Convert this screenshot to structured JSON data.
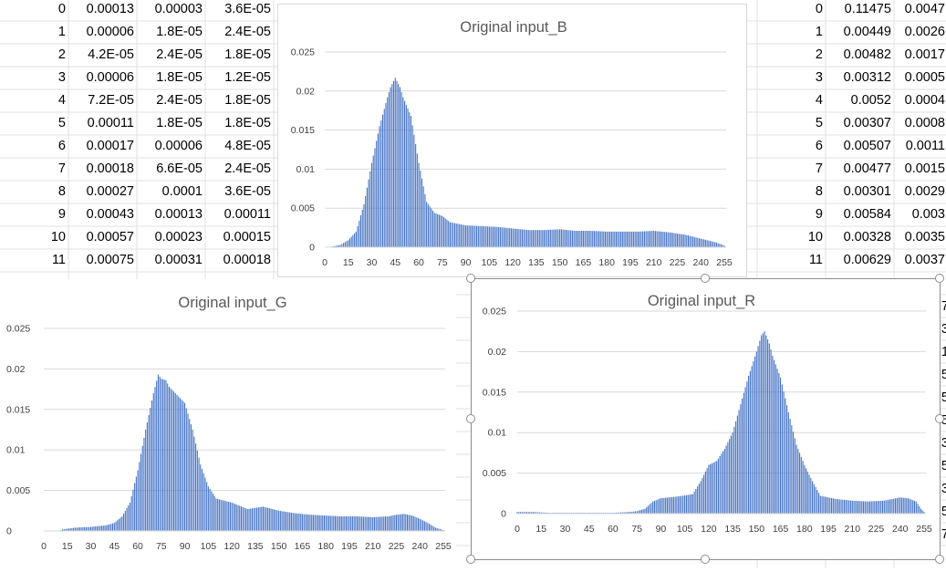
{
  "spreadsheet": {
    "left_block": {
      "rows": [
        [
          "0",
          "0.00013",
          "0.00003",
          "3.6E-05"
        ],
        [
          "1",
          "0.00006",
          "1.8E-05",
          "2.4E-05"
        ],
        [
          "2",
          "4.2E-05",
          "2.4E-05",
          "1.8E-05"
        ],
        [
          "3",
          "0.00006",
          "1.8E-05",
          "1.2E-05"
        ],
        [
          "4",
          "7.2E-05",
          "2.4E-05",
          "1.8E-05"
        ],
        [
          "5",
          "0.00011",
          "1.8E-05",
          "1.8E-05"
        ],
        [
          "6",
          "0.00017",
          "0.00006",
          "4.8E-05"
        ],
        [
          "7",
          "0.00018",
          "6.6E-05",
          "2.4E-05"
        ],
        [
          "8",
          "0.00027",
          "0.0001",
          "3.6E-05"
        ],
        [
          "9",
          "0.00043",
          "0.00013",
          "0.00011"
        ],
        [
          "10",
          "0.00057",
          "0.00023",
          "0.00015"
        ],
        [
          "11",
          "0.00075",
          "0.00031",
          "0.00018"
        ]
      ]
    },
    "right_block": {
      "rows": [
        [
          "0",
          "0.11475",
          "0.0047"
        ],
        [
          "1",
          "0.00449",
          "0.0026"
        ],
        [
          "2",
          "0.00482",
          "0.0017"
        ],
        [
          "3",
          "0.00312",
          "0.0005"
        ],
        [
          "4",
          "0.0052",
          "0.0004"
        ],
        [
          "5",
          "0.00307",
          "0.0008"
        ],
        [
          "6",
          "0.00507",
          "0.0011"
        ],
        [
          "7",
          "0.00477",
          "0.0015"
        ],
        [
          "8",
          "0.00301",
          "0.0029"
        ],
        [
          "9",
          "0.00584",
          "0.003"
        ],
        [
          "10",
          "0.00328",
          "0.0035"
        ],
        [
          "11",
          "0.00629",
          "0.0037"
        ]
      ]
    },
    "right_edge_digits": [
      "7",
      "3",
      "1",
      "5",
      "5",
      "5",
      "3",
      "5",
      "3",
      "5",
      "7"
    ]
  },
  "colors": {
    "bar": "#4472c4",
    "gridline": "#d9d9d9",
    "title": "#595959",
    "axis_text": "#404040",
    "cell_grid": "#e0e0e0"
  },
  "chart_data": [
    {
      "type": "bar",
      "title": "Original input_B",
      "x_ticks": [
        0,
        15,
        30,
        45,
        60,
        75,
        90,
        105,
        120,
        135,
        150,
        165,
        180,
        195,
        210,
        225,
        240,
        255
      ],
      "y_ticks": [
        0,
        0.005,
        0.01,
        0.015,
        0.02,
        0.025
      ],
      "y_tick_labels": [
        "0",
        "0.005",
        "0.01",
        "0.015",
        "0.02",
        "0.025"
      ],
      "ylim": [
        0,
        0.025
      ],
      "x": [
        0,
        5,
        10,
        15,
        20,
        25,
        30,
        35,
        40,
        42,
        44,
        45,
        46,
        48,
        50,
        55,
        60,
        65,
        70,
        75,
        80,
        90,
        100,
        110,
        120,
        130,
        140,
        150,
        160,
        170,
        180,
        190,
        200,
        210,
        220,
        230,
        240,
        250,
        255
      ],
      "values": [
        0,
        0.0001,
        0.0003,
        0.0009,
        0.002,
        0.0055,
        0.0108,
        0.0155,
        0.0192,
        0.0205,
        0.0213,
        0.0217,
        0.0213,
        0.0205,
        0.0192,
        0.0168,
        0.0108,
        0.0058,
        0.0044,
        0.004,
        0.0032,
        0.0028,
        0.0027,
        0.0026,
        0.0024,
        0.0022,
        0.0022,
        0.0023,
        0.0021,
        0.0021,
        0.002,
        0.002,
        0.002,
        0.0021,
        0.0019,
        0.0016,
        0.0011,
        0.0006,
        0.0002
      ]
    },
    {
      "type": "bar",
      "title": "Original input_G",
      "x_ticks": [
        0,
        15,
        30,
        45,
        60,
        75,
        90,
        105,
        120,
        135,
        150,
        165,
        180,
        195,
        210,
        225,
        240,
        255
      ],
      "y_ticks": [
        0,
        0.005,
        0.01,
        0.015,
        0.02,
        0.025
      ],
      "y_tick_labels": [
        "0",
        "0.005",
        "0.01",
        "0.015",
        "0.02",
        "0.025"
      ],
      "ylim": [
        0,
        0.025
      ],
      "x": [
        0,
        10,
        12,
        20,
        30,
        40,
        45,
        50,
        55,
        60,
        65,
        70,
        73,
        75,
        78,
        80,
        85,
        90,
        95,
        100,
        105,
        110,
        120,
        130,
        140,
        150,
        160,
        170,
        180,
        190,
        200,
        210,
        220,
        225,
        230,
        235,
        240,
        245,
        250,
        255
      ],
      "values": [
        0,
        0,
        0.0002,
        0.0004,
        0.0005,
        0.0007,
        0.001,
        0.0018,
        0.0035,
        0.0075,
        0.0125,
        0.017,
        0.0193,
        0.0188,
        0.0186,
        0.0178,
        0.0168,
        0.0158,
        0.0125,
        0.0082,
        0.0055,
        0.004,
        0.0035,
        0.0027,
        0.003,
        0.0025,
        0.0022,
        0.002,
        0.0019,
        0.0018,
        0.0018,
        0.0017,
        0.0018,
        0.002,
        0.0021,
        0.0019,
        0.0015,
        0.001,
        0.0004,
        0.0001
      ]
    },
    {
      "type": "bar",
      "title": "Original input_R",
      "x_ticks": [
        0,
        15,
        30,
        45,
        60,
        75,
        90,
        105,
        120,
        135,
        150,
        165,
        180,
        195,
        210,
        225,
        240,
        255
      ],
      "y_ticks": [
        0,
        0.005,
        0.01,
        0.015,
        0.02,
        0.025
      ],
      "y_tick_labels": [
        "0",
        "0.005",
        "0.01",
        "0.015",
        "0.02",
        "0.025"
      ],
      "ylim": [
        0,
        0.025
      ],
      "x": [
        0,
        10,
        20,
        40,
        60,
        70,
        75,
        80,
        85,
        90,
        100,
        110,
        115,
        120,
        125,
        130,
        135,
        140,
        145,
        150,
        153,
        155,
        158,
        160,
        165,
        170,
        175,
        180,
        185,
        190,
        200,
        210,
        220,
        230,
        235,
        240,
        245,
        250,
        253,
        255
      ],
      "values": [
        0.0002,
        0.0002,
        0.0001,
        0.0001,
        0.0001,
        0.0002,
        0.0003,
        0.0006,
        0.0015,
        0.0019,
        0.0021,
        0.0024,
        0.004,
        0.006,
        0.0065,
        0.008,
        0.01,
        0.0135,
        0.017,
        0.02,
        0.022,
        0.0225,
        0.021,
        0.0195,
        0.0168,
        0.0125,
        0.0085,
        0.006,
        0.004,
        0.0022,
        0.0018,
        0.0016,
        0.0015,
        0.0016,
        0.0018,
        0.002,
        0.0019,
        0.0015,
        0.0006,
        0.0002
      ]
    }
  ]
}
